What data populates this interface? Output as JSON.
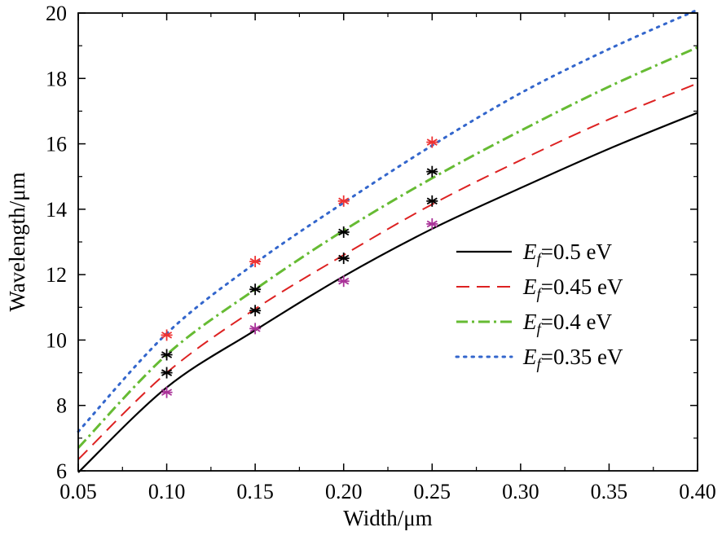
{
  "chart_data": {
    "type": "line",
    "title": "",
    "xlabel": "Width/μm",
    "ylabel": "Wavelength/μm",
    "xlim": [
      0.05,
      0.4
    ],
    "ylim": [
      6,
      20
    ],
    "xticks": [
      "0.05",
      "0.10",
      "0.15",
      "0.20",
      "0.25",
      "0.30",
      "0.35",
      "0.40"
    ],
    "yticks": [
      "6",
      "8",
      "10",
      "12",
      "14",
      "16",
      "18",
      "20"
    ],
    "grid": false,
    "legend_position": "center-right",
    "series": [
      {
        "name": "E_f=0.5 eV",
        "legend_var": "E",
        "legend_sub": "f",
        "legend_rest": "=0.5 eV",
        "color": "#000000",
        "style": "solid",
        "x": [
          0.05,
          0.1,
          0.15,
          0.2,
          0.25,
          0.3,
          0.35,
          0.4
        ],
        "y": [
          5.95,
          8.55,
          10.3,
          11.95,
          13.4,
          14.65,
          15.85,
          16.95
        ],
        "markers": {
          "x": [
            0.1,
            0.15,
            0.2,
            0.25
          ],
          "y": [
            8.4,
            10.35,
            11.8,
            13.55
          ],
          "color": "#aa3399"
        }
      },
      {
        "name": "E_f=0.45 eV",
        "legend_var": "E",
        "legend_sub": "f",
        "legend_rest": "=0.45 eV",
        "color": "#dd2222",
        "style": "dashed",
        "x": [
          0.05,
          0.1,
          0.15,
          0.2,
          0.25,
          0.3,
          0.35,
          0.4
        ],
        "y": [
          6.35,
          9.0,
          10.95,
          12.6,
          14.15,
          15.5,
          16.75,
          17.85
        ],
        "markers": {
          "x": [
            0.1,
            0.15,
            0.2,
            0.25
          ],
          "y": [
            9.0,
            10.9,
            12.5,
            14.25
          ],
          "color": "#000000"
        }
      },
      {
        "name": "E_f=0.4 eV",
        "legend_var": "E",
        "legend_sub": "f",
        "legend_rest": "=0.4 eV",
        "color": "#66bb33",
        "style": "dashdot",
        "x": [
          0.05,
          0.1,
          0.15,
          0.2,
          0.25,
          0.3,
          0.35,
          0.4
        ],
        "y": [
          6.7,
          9.55,
          11.55,
          13.35,
          14.95,
          16.4,
          17.75,
          18.95
        ],
        "markers": {
          "x": [
            0.1,
            0.15,
            0.2,
            0.25
          ],
          "y": [
            9.55,
            11.55,
            13.3,
            15.15
          ],
          "color": "#000000"
        }
      },
      {
        "name": "E_f=0.35 eV",
        "legend_var": "E",
        "legend_sub": "f",
        "legend_rest": "=0.35 eV",
        "color": "#3366cc",
        "style": "dotted",
        "x": [
          0.05,
          0.1,
          0.15,
          0.2,
          0.25,
          0.3,
          0.35,
          0.4
        ],
        "y": [
          7.2,
          10.2,
          12.35,
          14.2,
          15.95,
          17.55,
          18.9,
          20.1
        ],
        "markers": {
          "x": [
            0.1,
            0.15,
            0.2,
            0.25
          ],
          "y": [
            10.15,
            12.4,
            14.25,
            16.05
          ],
          "color": "#ee3333"
        }
      }
    ]
  }
}
